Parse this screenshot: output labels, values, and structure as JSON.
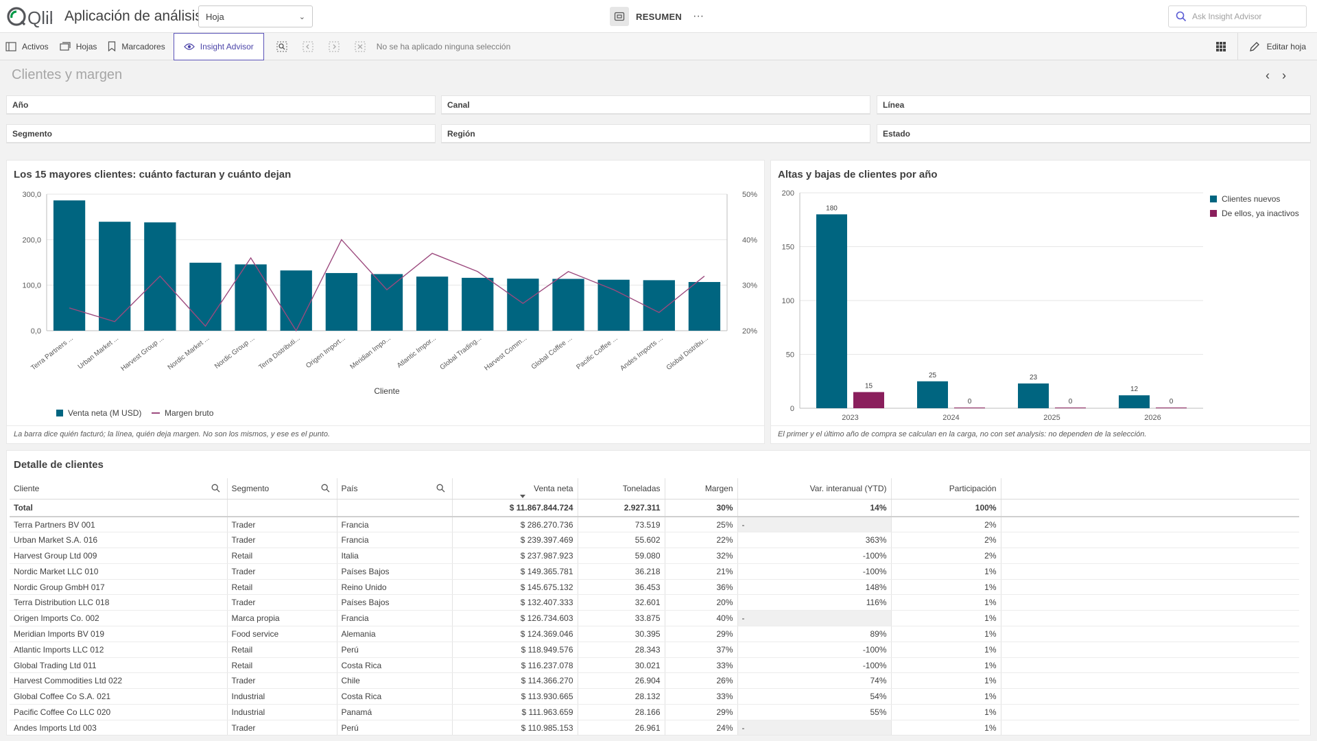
{
  "app": {
    "logo_text": "Qlik",
    "title": "Aplicación de análisis",
    "sheet_select_label": "Hoja",
    "center_label": "RESUMEN",
    "more_label": "···",
    "ask_placeholder": "Ask Insight Advisor"
  },
  "toolbar": {
    "assets": "Activos",
    "sheets": "Hojas",
    "bookmarks": "Marcadores",
    "insight": "Insight Advisor",
    "no_selection": "No se ha aplicado ninguna selección",
    "edit_sheet": "Editar hoja"
  },
  "sheet": {
    "title": "Clientes y margen"
  },
  "filters": [
    "Año",
    "Canal",
    "Línea",
    "Segmento",
    "Región",
    "Estado"
  ],
  "colors": {
    "teal": "#006580",
    "purple": "#8a1f5c",
    "line": "#9c4a7e",
    "accent": "#4b44a8"
  },
  "chart_left": {
    "title": "Los 15 mayores clientes: cuánto facturan y cuánto dejan",
    "footnote": "La barra dice quién facturó; la línea, quién deja margen. No son los mismos, y ese es el punto."
  },
  "chart_right": {
    "title": "Altas y bajas de clientes por año",
    "footnote": "El primer y el último año de compra se calculan en la carga, no con set analysis: no dependen de la selección."
  },
  "chart_data": [
    {
      "type": "bar",
      "title": "Los 15 mayores clientes: cuánto facturan y cuánto dejan",
      "xlabel": "Cliente",
      "categories": [
        "Terra Partners ...",
        "Urban Market ...",
        "Harvest Group ...",
        "Nordic Market ...",
        "Nordic Group ...",
        "Terra Distributi...",
        "Origen Import...",
        "Meridian Impo...",
        "Atlantic Impor...",
        "Global Trading...",
        "Harvest Comm...",
        "Global Coffee ...",
        "Pacific Coffee ...",
        "Andes Imports ...",
        "Global Distribu..."
      ],
      "series": [
        {
          "name": "Venta neta (M USD)",
          "kind": "bar",
          "axis": "left",
          "values": [
            286.3,
            239.4,
            238.0,
            149.4,
            145.7,
            132.4,
            126.7,
            124.4,
            118.9,
            116.2,
            114.4,
            113.9,
            112.0,
            111.0,
            107.0
          ]
        },
        {
          "name": "Margen bruto",
          "kind": "line",
          "axis": "right",
          "values": [
            0.25,
            0.22,
            0.32,
            0.21,
            0.36,
            0.2,
            0.4,
            0.29,
            0.37,
            0.33,
            0.26,
            0.33,
            0.29,
            0.24,
            0.32
          ]
        }
      ],
      "yticks_left": [
        "0,0",
        "100,0",
        "200,0",
        "300,0"
      ],
      "yticks_right": [
        "20%",
        "30%",
        "40%",
        "50%"
      ],
      "ylim_left": [
        0,
        300
      ],
      "ylim_right": [
        0.2,
        0.5
      ],
      "legend": "bottom-left",
      "grid": true
    },
    {
      "type": "bar",
      "title": "Altas y bajas de clientes por año",
      "categories": [
        "2023",
        "2024",
        "2025",
        "2026"
      ],
      "series": [
        {
          "name": "Clientes nuevos",
          "values": [
            180,
            25,
            23,
            12
          ]
        },
        {
          "name": "De ellos, ya inactivos",
          "values": [
            15,
            0,
            0,
            0
          ]
        }
      ],
      "yticks": [
        "0",
        "50",
        "100",
        "150",
        "200"
      ],
      "ylim": [
        0,
        200
      ],
      "legend": "top-right",
      "grid": true
    }
  ],
  "table": {
    "title": "Detalle de clientes",
    "headers": [
      "Cliente",
      "Segmento",
      "País",
      "Venta neta",
      "Toneladas",
      "Margen",
      "Var. interanual (YTD)",
      "Participación"
    ],
    "total": [
      "Total",
      "",
      "",
      "$ 11.867.844.724",
      "2.927.311",
      "30%",
      "14%",
      "100%"
    ],
    "rows": [
      [
        "Terra Partners BV 001",
        "Trader",
        "Francia",
        "$ 286.270.736",
        "73.519",
        "25%",
        "-",
        "2%"
      ],
      [
        "Urban Market S.A. 016",
        "Trader",
        "Francia",
        "$ 239.397.469",
        "55.602",
        "22%",
        "363%",
        "2%"
      ],
      [
        "Harvest Group Ltd 009",
        "Retail",
        "Italia",
        "$ 237.987.923",
        "59.080",
        "32%",
        "-100%",
        "2%"
      ],
      [
        "Nordic Market LLC 010",
        "Trader",
        "Países Bajos",
        "$ 149.365.781",
        "36.218",
        "21%",
        "-100%",
        "1%"
      ],
      [
        "Nordic Group GmbH 017",
        "Retail",
        "Reino Unido",
        "$ 145.675.132",
        "36.453",
        "36%",
        "148%",
        "1%"
      ],
      [
        "Terra Distribution LLC 018",
        "Trader",
        "Países Bajos",
        "$ 132.407.333",
        "32.601",
        "20%",
        "116%",
        "1%"
      ],
      [
        "Origen Imports Co. 002",
        "Marca propia",
        "Francia",
        "$ 126.734.603",
        "33.875",
        "40%",
        "-",
        "1%"
      ],
      [
        "Meridian Imports BV 019",
        "Food service",
        "Alemania",
        "$ 124.369.046",
        "30.395",
        "29%",
        "89%",
        "1%"
      ],
      [
        "Atlantic Imports LLC 012",
        "Retail",
        "Perú",
        "$ 118.949.576",
        "28.343",
        "37%",
        "-100%",
        "1%"
      ],
      [
        "Global Trading Ltd 011",
        "Retail",
        "Costa Rica",
        "$ 116.237.078",
        "30.021",
        "33%",
        "-100%",
        "1%"
      ],
      [
        "Harvest Commodities Ltd 022",
        "Trader",
        "Chile",
        "$ 114.366.270",
        "26.904",
        "26%",
        "74%",
        "1%"
      ],
      [
        "Global Coffee Co S.A. 021",
        "Industrial",
        "Costa Rica",
        "$ 113.930.665",
        "28.132",
        "33%",
        "54%",
        "1%"
      ],
      [
        "Pacific Coffee Co LLC 020",
        "Industrial",
        "Panamá",
        "$ 111.963.659",
        "28.166",
        "29%",
        "55%",
        "1%"
      ],
      [
        "Andes Imports Ltd 003",
        "Trader",
        "Perú",
        "$ 110.985.153",
        "26.961",
        "24%",
        "-",
        "1%"
      ]
    ]
  }
}
